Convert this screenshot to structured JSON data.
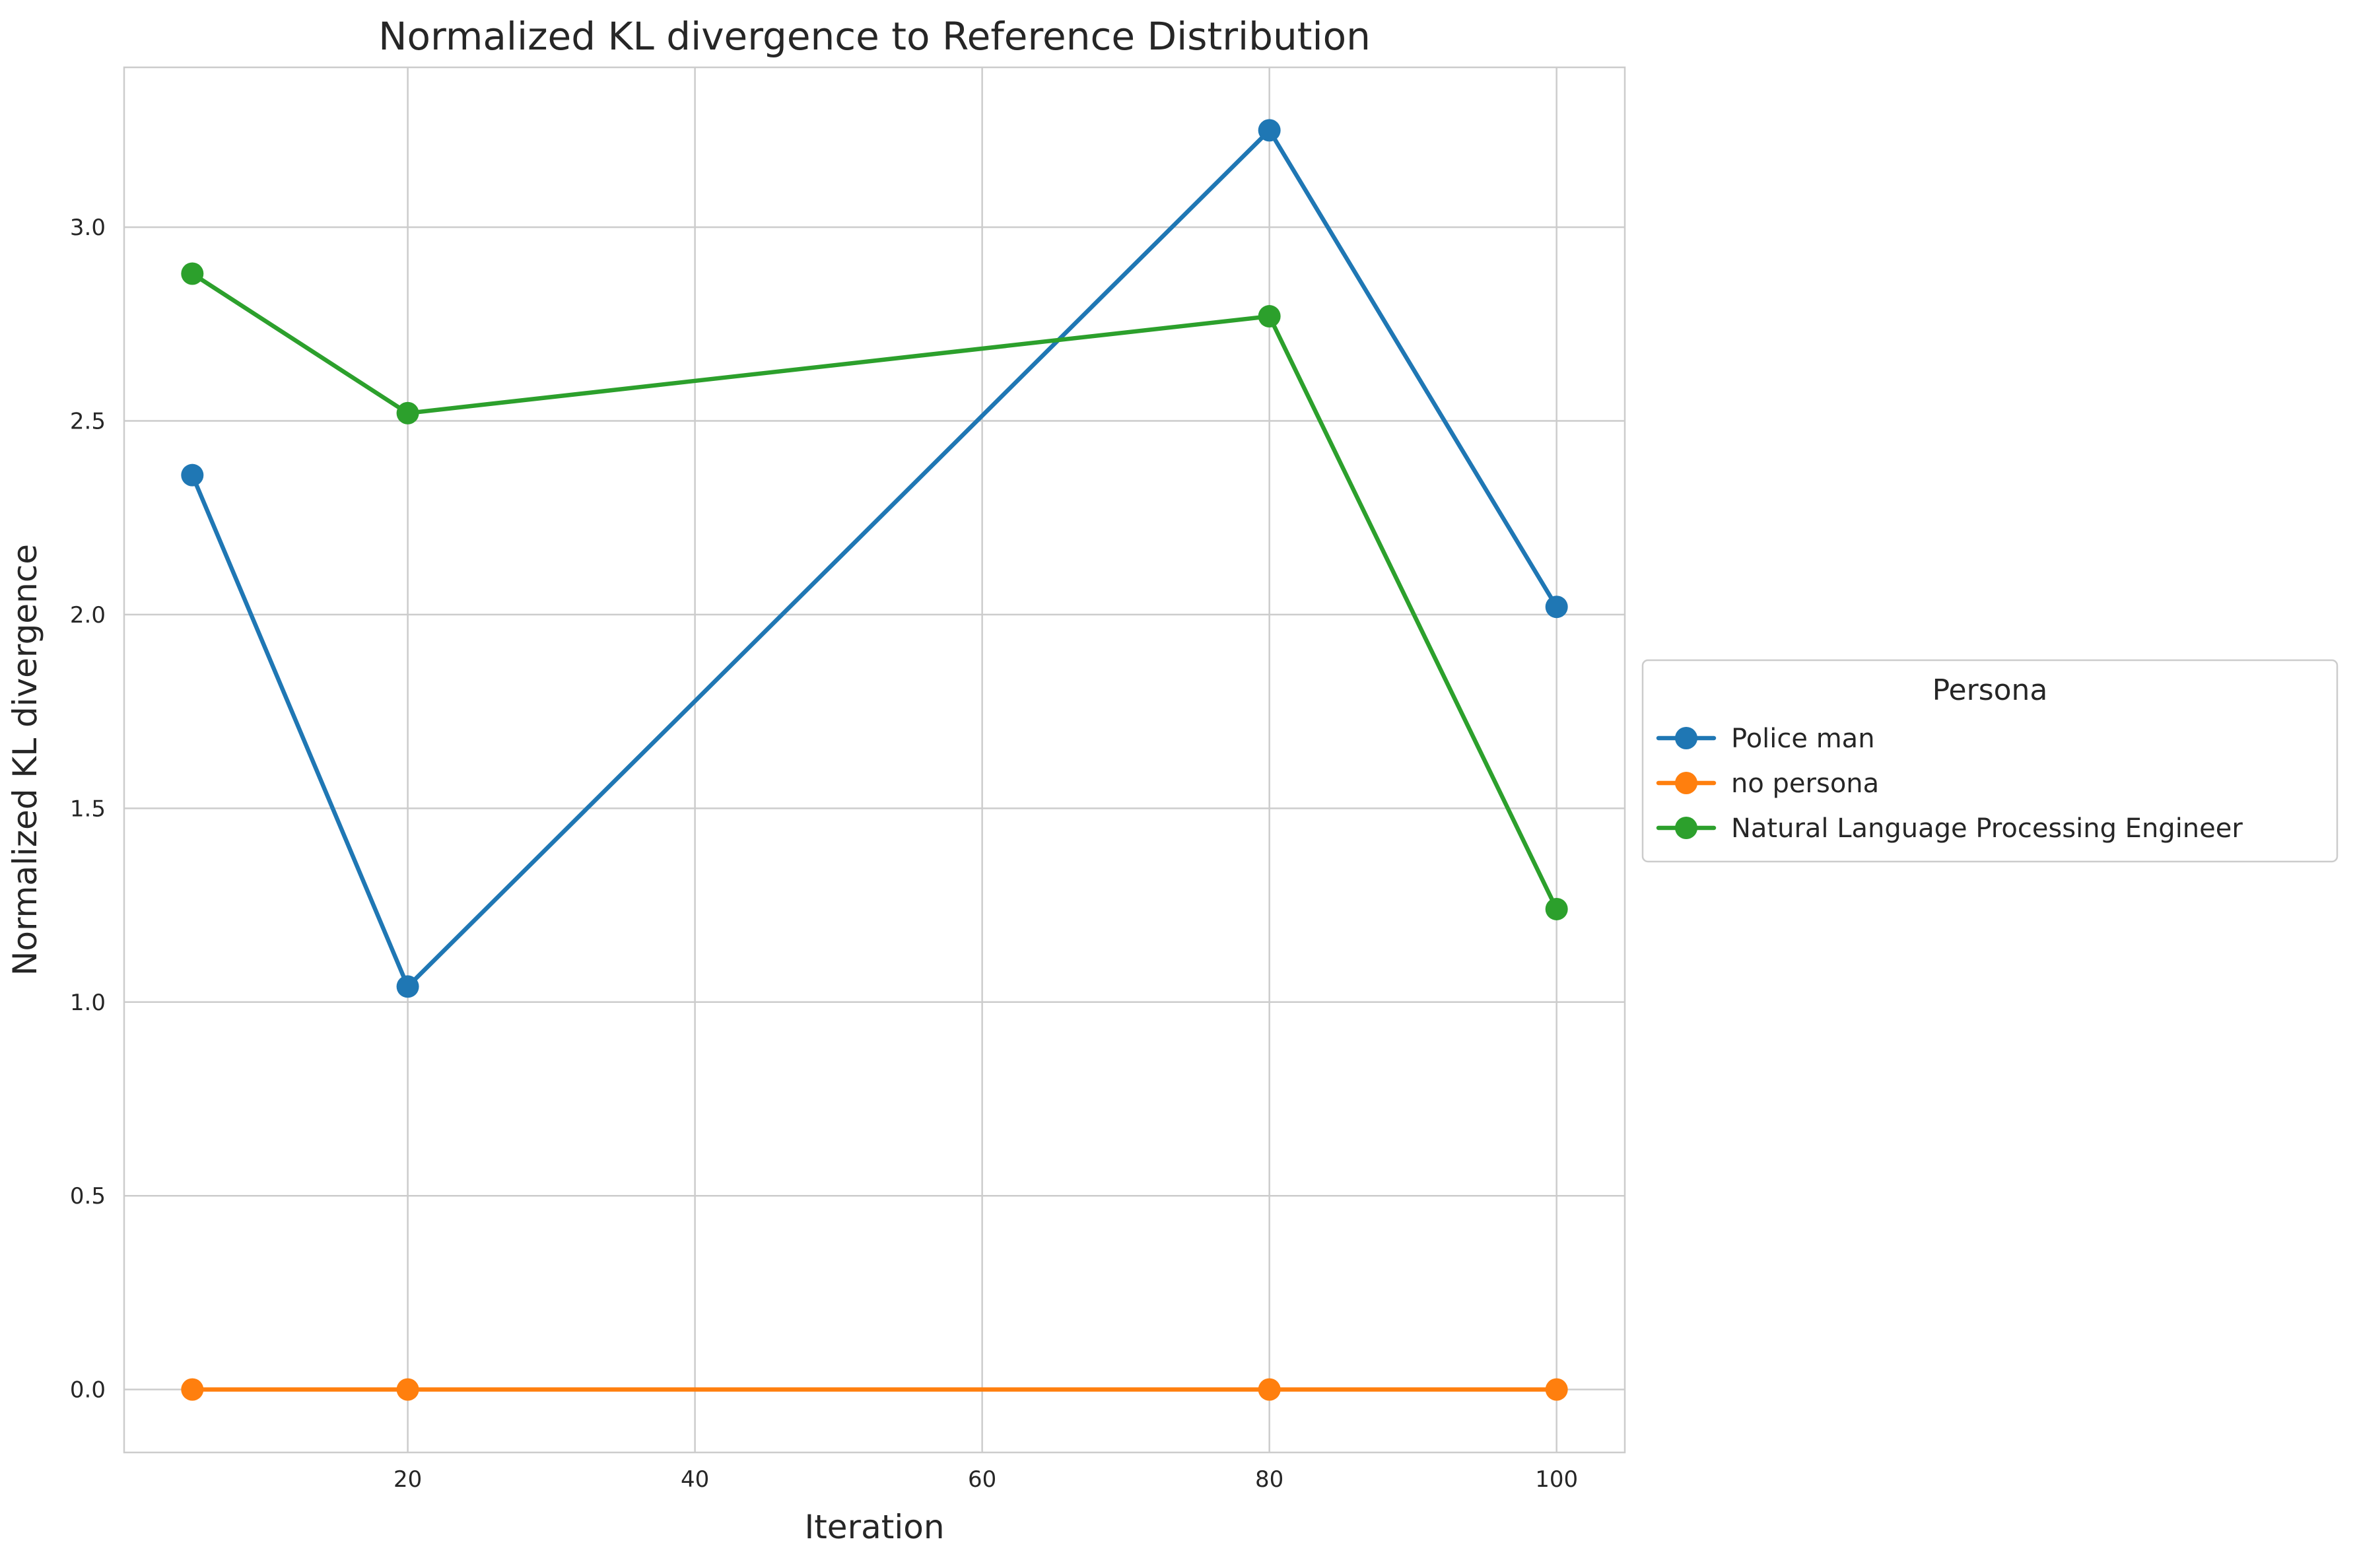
{
  "chart_data": {
    "type": "line",
    "title": "Normalized KL divergence to Reference Distribution",
    "xlabel": "Iteration",
    "ylabel": "Normalized KL divergence",
    "xlim": [
      0.25,
      104.75
    ],
    "ylim": [
      -0.1625,
      3.4125
    ],
    "xticks": [
      20,
      40,
      60,
      80,
      100
    ],
    "xtick_labels": [
      "20",
      "40",
      "60",
      "80",
      "100"
    ],
    "yticks": [
      0.0,
      0.5,
      1.0,
      1.5,
      2.0,
      2.5,
      3.0
    ],
    "ytick_labels": [
      "0.0",
      "0.5",
      "1.0",
      "1.5",
      "2.0",
      "2.5",
      "3.0"
    ],
    "grid": true,
    "legend_title": "Persona",
    "legend_position": "center-right outside",
    "series": [
      {
        "name": "Police man",
        "color": "#1f77b4",
        "marker": "circle",
        "x": [
          5,
          20,
          80,
          100
        ],
        "y": [
          2.36,
          1.04,
          3.25,
          2.02
        ]
      },
      {
        "name": "no persona",
        "color": "#ff7f0e",
        "marker": "circle",
        "x": [
          5,
          20,
          80,
          100
        ],
        "y": [
          0.0,
          0.0,
          0.0,
          0.0
        ]
      },
      {
        "name": "Natural Language Processing Engineer",
        "color": "#2ca02c",
        "marker": "circle",
        "x": [
          5,
          20,
          80,
          100
        ],
        "y": [
          2.88,
          2.52,
          2.77,
          1.24
        ]
      }
    ]
  }
}
